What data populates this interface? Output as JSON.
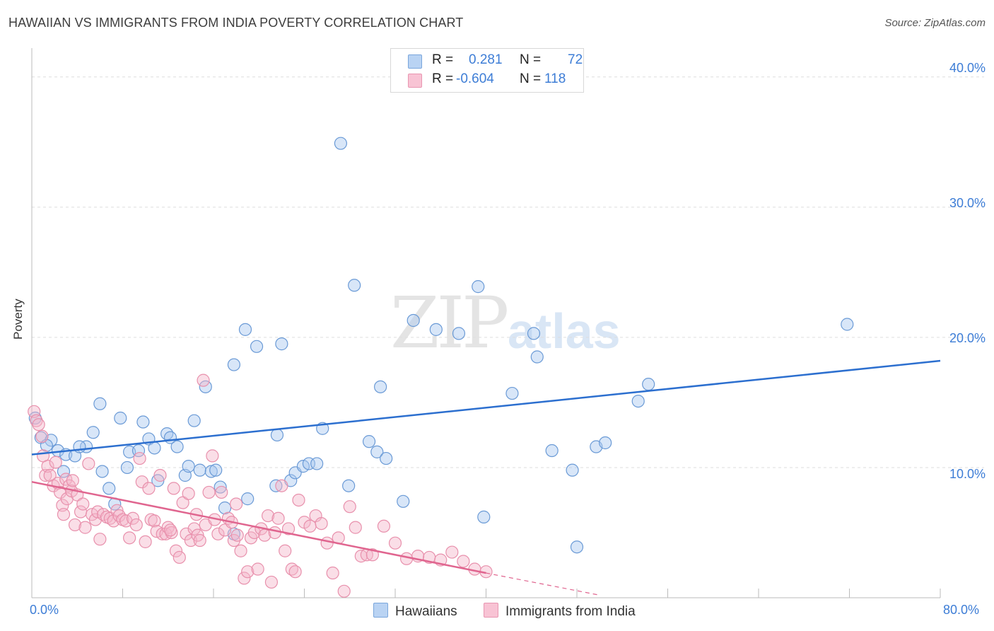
{
  "title": "HAWAIIAN VS IMMIGRANTS FROM INDIA POVERTY CORRELATION CHART",
  "source": "Source: ZipAtlas.com",
  "watermark": {
    "zip": "ZIP",
    "atlas": "atlas"
  },
  "legend": {
    "rows": [
      {
        "r_label": "R =",
        "r_value": "0.281",
        "n_label": "N =",
        "n_value": "72"
      },
      {
        "r_label": "R =",
        "r_value": "-0.604",
        "n_label": "N =",
        "n_value": "118"
      }
    ]
  },
  "bottom_legend": [
    "Hawaiians",
    "Immigrants from India"
  ],
  "chart_data": {
    "type": "scatter",
    "title": "HAWAIIAN VS IMMIGRANTS FROM INDIA POVERTY CORRELATION CHART",
    "xlabel": "",
    "ylabel": "Poverty",
    "xlim": [
      0,
      80
    ],
    "ylim": [
      0,
      42
    ],
    "x_tick_labels": [
      "0.0%",
      "80.0%"
    ],
    "y_ticks": [
      10,
      20,
      30,
      40
    ],
    "y_tick_labels": [
      "10.0%",
      "20.0%",
      "30.0%",
      "40.0%"
    ],
    "grid": true,
    "legend_position": "top-center",
    "series": [
      {
        "name": "Hawaiians",
        "color": "#a9c8ef",
        "stroke": "#6a9ad6",
        "trend_color": "#2c6fcf",
        "trend": {
          "x": [
            0,
            80
          ],
          "y": [
            11.0,
            18.2
          ]
        },
        "points": [
          [
            0.3,
            13.8
          ],
          [
            0.8,
            12.3
          ],
          [
            1.7,
            12.1
          ],
          [
            1.3,
            11.7
          ],
          [
            2.3,
            11.3
          ],
          [
            3.0,
            11.0
          ],
          [
            3.8,
            10.9
          ],
          [
            2.8,
            9.7
          ],
          [
            4.8,
            11.6
          ],
          [
            4.2,
            11.6
          ],
          [
            6.0,
            14.9
          ],
          [
            5.4,
            12.7
          ],
          [
            6.2,
            9.7
          ],
          [
            6.8,
            8.4
          ],
          [
            7.3,
            7.2
          ],
          [
            7.8,
            13.8
          ],
          [
            8.4,
            10.0
          ],
          [
            8.6,
            11.2
          ],
          [
            9.4,
            11.3
          ],
          [
            9.8,
            13.5
          ],
          [
            10.3,
            12.2
          ],
          [
            10.8,
            11.5
          ],
          [
            11.1,
            9.0
          ],
          [
            11.9,
            12.6
          ],
          [
            12.2,
            12.3
          ],
          [
            12.8,
            11.6
          ],
          [
            13.5,
            9.4
          ],
          [
            13.8,
            10.1
          ],
          [
            14.3,
            13.6
          ],
          [
            14.8,
            9.8
          ],
          [
            15.3,
            16.2
          ],
          [
            15.8,
            9.7
          ],
          [
            16.2,
            9.8
          ],
          [
            16.6,
            8.5
          ],
          [
            17.0,
            6.9
          ],
          [
            17.8,
            17.9
          ],
          [
            17.8,
            4.9
          ],
          [
            18.8,
            20.6
          ],
          [
            19.0,
            7.6
          ],
          [
            19.8,
            19.3
          ],
          [
            22.0,
            19.5
          ],
          [
            21.5,
            8.6
          ],
          [
            21.6,
            12.5
          ],
          [
            22.8,
            9.0
          ],
          [
            23.2,
            9.6
          ],
          [
            23.9,
            10.1
          ],
          [
            24.4,
            10.3
          ],
          [
            25.1,
            10.3
          ],
          [
            25.6,
            13.0
          ],
          [
            27.2,
            34.9
          ],
          [
            27.9,
            8.6
          ],
          [
            28.4,
            24.0
          ],
          [
            29.7,
            12.0
          ],
          [
            30.4,
            11.2
          ],
          [
            30.7,
            16.2
          ],
          [
            31.2,
            10.7
          ],
          [
            32.7,
            7.4
          ],
          [
            33.6,
            21.3
          ],
          [
            35.6,
            20.6
          ],
          [
            37.6,
            20.3
          ],
          [
            39.3,
            23.9
          ],
          [
            39.8,
            6.2
          ],
          [
            42.3,
            15.7
          ],
          [
            44.2,
            20.3
          ],
          [
            44.5,
            18.5
          ],
          [
            45.8,
            11.3
          ],
          [
            47.6,
            9.8
          ],
          [
            48.0,
            3.9
          ],
          [
            49.7,
            11.6
          ],
          [
            50.5,
            11.9
          ],
          [
            53.4,
            15.1
          ],
          [
            54.3,
            16.4
          ],
          [
            71.8,
            21.0
          ]
        ]
      },
      {
        "name": "Immigrants from India",
        "color": "#f5b6c9",
        "stroke": "#e890ac",
        "trend_color": "#e0658f",
        "trend": {
          "x": [
            0,
            40
          ],
          "y": [
            8.9,
            1.9
          ]
        },
        "trend_dashed_to": {
          "x": 50,
          "y": 0.2
        },
        "points": [
          [
            0.2,
            14.3
          ],
          [
            0.4,
            13.6
          ],
          [
            0.6,
            13.3
          ],
          [
            0.9,
            12.4
          ],
          [
            1.0,
            10.9
          ],
          [
            1.2,
            9.4
          ],
          [
            1.4,
            10.1
          ],
          [
            1.6,
            9.4
          ],
          [
            1.9,
            8.6
          ],
          [
            2.1,
            10.4
          ],
          [
            2.3,
            8.8
          ],
          [
            2.5,
            8.1
          ],
          [
            2.7,
            7.1
          ],
          [
            2.8,
            6.4
          ],
          [
            3.0,
            9.1
          ],
          [
            3.1,
            7.6
          ],
          [
            3.3,
            8.6
          ],
          [
            3.5,
            8.2
          ],
          [
            3.6,
            9.0
          ],
          [
            3.8,
            5.6
          ],
          [
            4.0,
            7.9
          ],
          [
            4.3,
            6.6
          ],
          [
            4.5,
            7.2
          ],
          [
            4.7,
            5.4
          ],
          [
            5.0,
            10.3
          ],
          [
            5.3,
            6.4
          ],
          [
            5.6,
            6.0
          ],
          [
            5.8,
            6.6
          ],
          [
            6.0,
            4.5
          ],
          [
            6.3,
            6.4
          ],
          [
            6.6,
            6.2
          ],
          [
            6.9,
            6.1
          ],
          [
            7.2,
            5.9
          ],
          [
            7.5,
            6.7
          ],
          [
            7.7,
            6.3
          ],
          [
            8.0,
            6.0
          ],
          [
            8.3,
            5.9
          ],
          [
            8.6,
            4.6
          ],
          [
            8.9,
            6.1
          ],
          [
            9.2,
            5.6
          ],
          [
            9.5,
            10.7
          ],
          [
            9.7,
            8.9
          ],
          [
            10.0,
            4.3
          ],
          [
            10.3,
            8.4
          ],
          [
            10.5,
            6.0
          ],
          [
            10.8,
            5.9
          ],
          [
            11.0,
            5.1
          ],
          [
            11.3,
            9.4
          ],
          [
            11.5,
            4.9
          ],
          [
            11.8,
            4.9
          ],
          [
            12.0,
            5.4
          ],
          [
            12.3,
            5.0
          ],
          [
            12.5,
            8.4
          ],
          [
            12.7,
            3.6
          ],
          [
            13.0,
            3.1
          ],
          [
            13.3,
            7.3
          ],
          [
            13.6,
            4.9
          ],
          [
            13.8,
            8.0
          ],
          [
            14.0,
            4.4
          ],
          [
            14.3,
            5.3
          ],
          [
            14.6,
            4.8
          ],
          [
            14.8,
            4.4
          ],
          [
            15.1,
            16.7
          ],
          [
            15.3,
            5.6
          ],
          [
            15.6,
            8.1
          ],
          [
            15.9,
            10.9
          ],
          [
            16.1,
            6.0
          ],
          [
            16.4,
            4.9
          ],
          [
            16.7,
            8.1
          ],
          [
            17.0,
            5.2
          ],
          [
            17.3,
            6.1
          ],
          [
            17.6,
            5.8
          ],
          [
            17.8,
            4.4
          ],
          [
            18.1,
            4.8
          ],
          [
            18.4,
            3.6
          ],
          [
            18.7,
            1.5
          ],
          [
            19.0,
            2.0
          ],
          [
            19.3,
            4.6
          ],
          [
            19.6,
            5.0
          ],
          [
            19.9,
            2.2
          ],
          [
            20.2,
            5.3
          ],
          [
            20.5,
            4.8
          ],
          [
            20.8,
            6.3
          ],
          [
            21.1,
            1.2
          ],
          [
            21.4,
            5.0
          ],
          [
            21.7,
            6.1
          ],
          [
            22.0,
            8.6
          ],
          [
            22.3,
            3.6
          ],
          [
            22.6,
            5.3
          ],
          [
            22.9,
            2.2
          ],
          [
            23.2,
            2.0
          ],
          [
            23.5,
            7.5
          ],
          [
            24.0,
            5.8
          ],
          [
            24.5,
            5.5
          ],
          [
            25.0,
            6.3
          ],
          [
            25.5,
            5.7
          ],
          [
            26.0,
            4.2
          ],
          [
            26.5,
            1.9
          ],
          [
            27.0,
            4.6
          ],
          [
            27.5,
            0.5
          ],
          [
            28.0,
            7.0
          ],
          [
            28.5,
            5.4
          ],
          [
            29.0,
            3.2
          ],
          [
            29.5,
            3.3
          ],
          [
            30.0,
            3.3
          ],
          [
            31.0,
            5.5
          ],
          [
            32.0,
            4.2
          ],
          [
            33.0,
            3.0
          ],
          [
            34.0,
            3.2
          ],
          [
            35.0,
            3.1
          ],
          [
            36.0,
            2.9
          ],
          [
            37.0,
            3.5
          ],
          [
            38.0,
            2.8
          ],
          [
            39.0,
            2.2
          ],
          [
            40.0,
            2.0
          ],
          [
            18.0,
            7.2
          ],
          [
            14.5,
            6.4
          ],
          [
            12.2,
            5.2
          ]
        ]
      }
    ]
  }
}
